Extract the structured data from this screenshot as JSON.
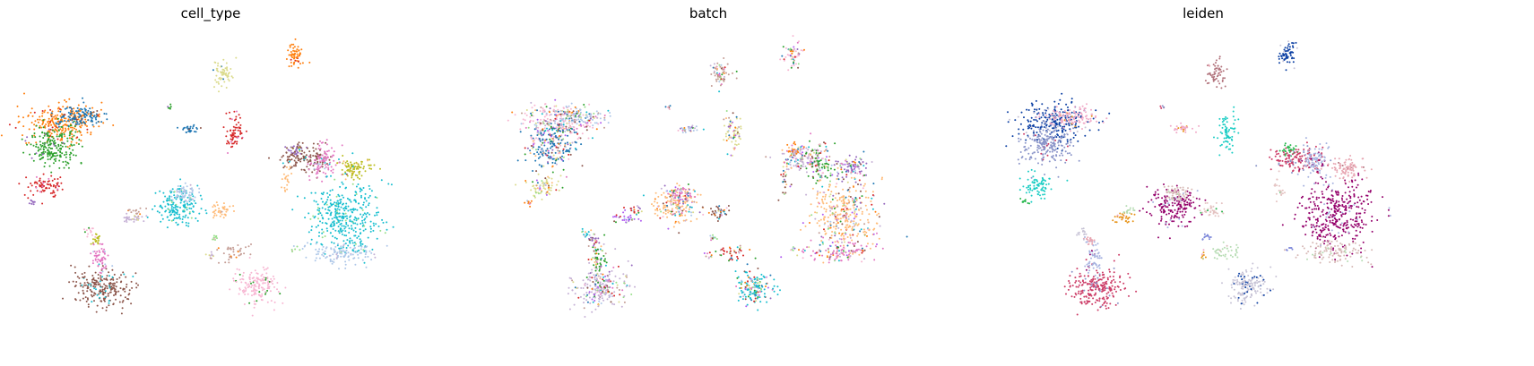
{
  "chart_data": [
    {
      "type": "scatter",
      "title": "cell_type",
      "xlabel": "",
      "ylabel": "",
      "grid": false,
      "legend": "none",
      "axes_visible": false,
      "palette": [
        "#ff7f0e",
        "#2ca02c",
        "#1f77b4",
        "#d62728",
        "#9467bd",
        "#8c564b",
        "#e377c2",
        "#bcbd22",
        "#17becf",
        "#aec7e8",
        "#ffbb78",
        "#98df8a",
        "#c5b0d5",
        "#c49c94",
        "#f7b6d2",
        "#dbdb8d"
      ]
    },
    {
      "type": "scatter",
      "title": "batch",
      "xlabel": "",
      "ylabel": "",
      "grid": false,
      "legend": "none",
      "axes_visible": false,
      "palette": [
        "#f7b6d2",
        "#d62728",
        "#8c564b",
        "#9467bd",
        "#ff7f0e",
        "#1f77b4",
        "#17becf",
        "#98df8a",
        "#ffbb78",
        "#c5b0d5",
        "#aec7e8",
        "#c49c94",
        "#b05cf0",
        "#e377c2",
        "#2ca02c",
        "#dbdb8d"
      ]
    },
    {
      "type": "scatter",
      "title": "leiden",
      "xlabel": "",
      "ylabel": "",
      "grid": false,
      "legend": "none",
      "axes_visible": false,
      "palette": [
        "#0b3fa3",
        "#e8a7b3",
        "#c7c3d6",
        "#cc3b66",
        "#e7951c",
        "#1ccdc4",
        "#e4c3c2",
        "#8b95c9",
        "#94006b",
        "#b1737c",
        "#a7b3e0",
        "#b6dcb3",
        "#2ab84f",
        "#7b86d9",
        "#f0a9c7",
        "#d7b9b6"
      ]
    }
  ]
}
